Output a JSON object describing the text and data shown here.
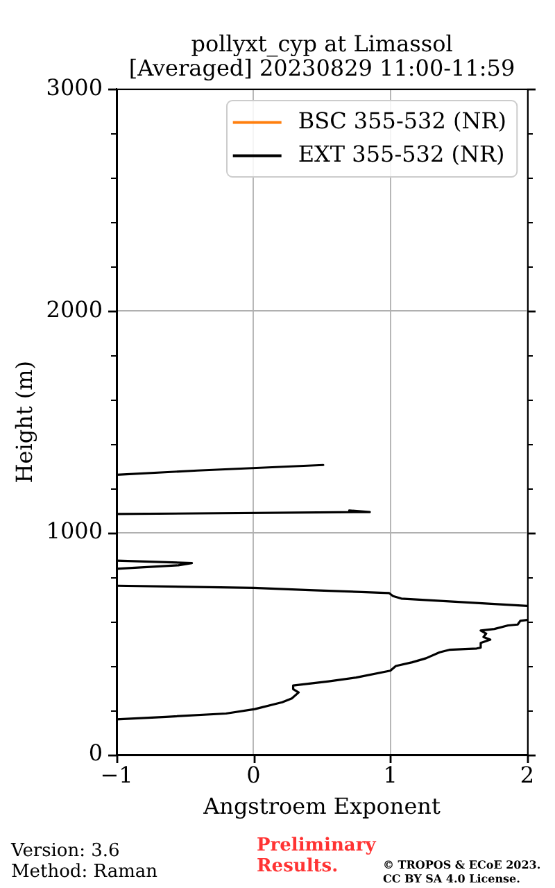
{
  "chart_data": {
    "type": "line",
    "title": "pollyxt_cyp at Limassol",
    "subtitle": "[Averaged] 20230829 11:00-11:59",
    "xlabel": "Angstroem Exponent",
    "ylabel": "Height (m)",
    "xlim": [
      -1,
      2
    ],
    "xticks": [
      {
        "value": -1,
        "label": "−1"
      },
      0,
      1,
      2
    ],
    "ylim": [
      0,
      3000
    ],
    "yticks": [
      0,
      {
        "value": 200,
        "label": null
      },
      {
        "value": 400,
        "label": null
      },
      {
        "value": 600,
        "label": null
      },
      {
        "value": 800,
        "label": null
      },
      1000,
      {
        "value": 1200,
        "label": null
      },
      {
        "value": 1400,
        "label": null
      },
      {
        "value": 1600,
        "label": null
      },
      {
        "value": 1800,
        "label": null
      },
      2000,
      {
        "value": 2200,
        "label": null
      },
      {
        "value": 2400,
        "label": null
      },
      {
        "value": 2600,
        "label": null
      },
      {
        "value": 2800,
        "label": null
      },
      3000
    ],
    "grid": true,
    "legend": "top right",
    "series": [
      {
        "name": "BSC 355-532 (NR)",
        "color": "#ff7f0e"
      },
      {
        "name": "EXT 355-532 (NR)",
        "color": "#000000",
        "x": [
          -1,
          -0.64,
          -0.2,
          0.01,
          0.21,
          0.28,
          0.33,
          0.29,
          0.29,
          0.55,
          0.75,
          1.0,
          1.04,
          1.16,
          1.26,
          1.36,
          1.43,
          1.63,
          1.66,
          1.66,
          1.73,
          1.68,
          1.7,
          1.66,
          1.76,
          1.86,
          1.93,
          1.95,
          2.0,
          null,
          2.0,
          1.08,
          1.02,
          0.99,
          0.41,
          0.0,
          -1,
          null,
          -1,
          -0.55,
          -0.45,
          -1,
          null,
          -1,
          0.62,
          0.85,
          0.7,
          null,
          -1,
          -0.41,
          0.51
        ],
        "values": [
          160,
          171,
          186,
          206,
          237,
          254,
          281,
          296,
          312,
          331,
          348,
          379,
          400,
          417,
          435,
          462,
          473,
          479,
          483,
          504,
          519,
          531,
          546,
          560,
          567,
          583,
          587,
          604,
          608,
          null,
          671,
          704,
          715,
          729,
          742,
          752,
          762,
          null,
          838,
          854,
          864,
          875,
          null,
          1085,
          1093,
          1094,
          1101,
          null,
          1262,
          1281,
          1306
        ]
      }
    ],
    "annotations": [
      "Version: 3.6",
      "Method: Raman",
      "Preliminary Results.",
      "© TROPOS & ECoE 2023.",
      "CC BY SA 4.0 License."
    ]
  }
}
